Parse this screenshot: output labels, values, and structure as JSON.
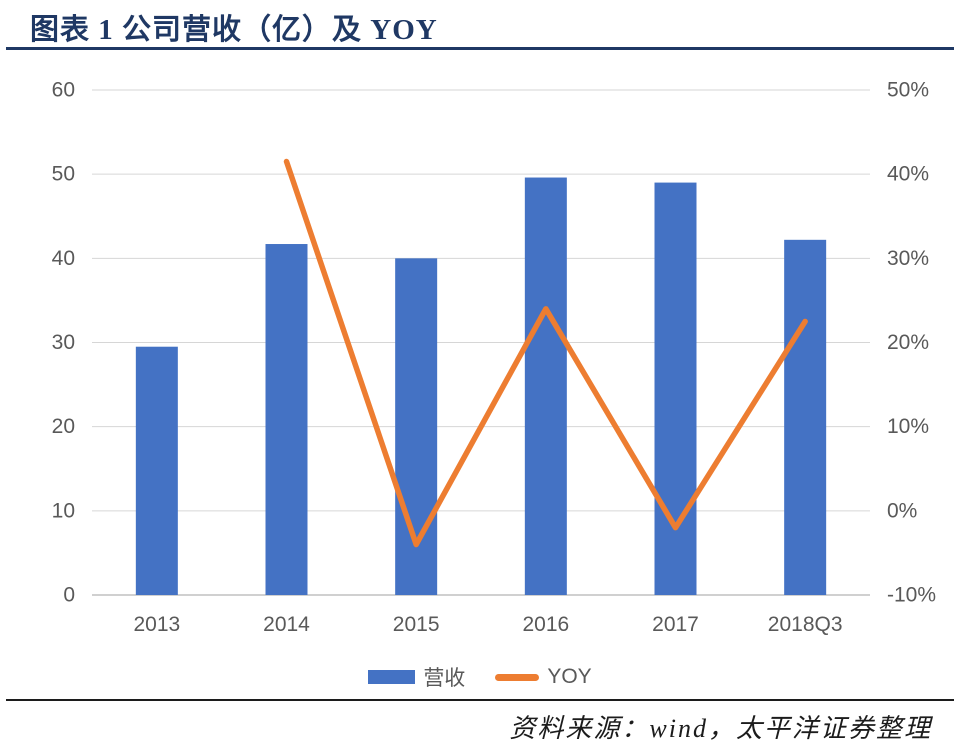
{
  "header": {
    "title": "图表 1 公司营收（亿）及 YOY"
  },
  "chart_data": {
    "type": "bar",
    "subtype": "bar+line combo",
    "title": "公司营收（亿）及 YOY",
    "categories": [
      "2013",
      "2014",
      "2015",
      "2016",
      "2017",
      "2018Q3"
    ],
    "series": [
      {
        "name": "营收",
        "type": "bar",
        "axis": "left",
        "values": [
          29.5,
          41.7,
          40,
          49.6,
          49,
          42.2
        ]
      },
      {
        "name": "YOY",
        "type": "line",
        "axis": "right",
        "values": [
          null,
          41.5,
          -4,
          24,
          -2,
          22.5
        ]
      }
    ],
    "left_axis": {
      "min": 0,
      "max": 60,
      "step": 10,
      "ticks": [
        "0",
        "10",
        "20",
        "30",
        "40",
        "50",
        "60"
      ]
    },
    "right_axis": {
      "min": -10,
      "max": 50,
      "step": 10,
      "ticks": [
        "-10%",
        "0%",
        "10%",
        "20%",
        "30%",
        "40%",
        "50%"
      ]
    },
    "grid": true,
    "legend_position": "bottom"
  },
  "legend": {
    "revenue_label": "营收",
    "yoy_label": "YOY"
  },
  "footer": {
    "source": "资料来源：wind，太平洋证券整理"
  },
  "colors": {
    "bar": "#4472C4",
    "line": "#ED7D31",
    "grid": "#D6D6D6",
    "axis": "#C0C0C0",
    "tick_text": "#595959",
    "title": "#1F3864"
  }
}
